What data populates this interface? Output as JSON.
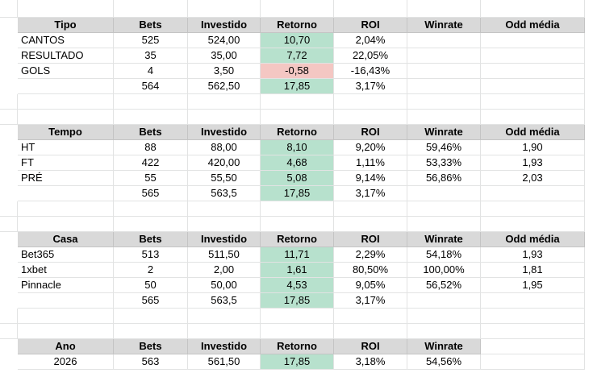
{
  "columns": [
    "",
    "",
    "",
    "",
    "",
    "",
    ""
  ],
  "tables": [
    {
      "name": "tipo",
      "headers": [
        "Tipo",
        "Bets",
        "Investido",
        "Retorno",
        "ROI",
        "Winrate",
        "Odd média"
      ],
      "rows": [
        [
          "CANTOS",
          "525",
          "524,00",
          "10,70",
          "2,04%",
          "",
          ""
        ],
        [
          "RESULTADO",
          "35",
          "35,00",
          "7,72",
          "22,05%",
          "",
          ""
        ],
        [
          "GOLS",
          "4",
          "3,50",
          "-0,58",
          "-16,43%",
          "",
          ""
        ],
        [
          "",
          "564",
          "562,50",
          "17,85",
          "3,17%",
          "",
          ""
        ]
      ]
    },
    {
      "name": "tempo",
      "headers": [
        "Tempo",
        "Bets",
        "Investido",
        "Retorno",
        "ROI",
        "Winrate",
        "Odd média"
      ],
      "rows": [
        [
          "HT",
          "88",
          "88,00",
          "8,10",
          "9,20%",
          "59,46%",
          "1,90"
        ],
        [
          "FT",
          "422",
          "420,00",
          "4,68",
          "1,11%",
          "53,33%",
          "1,93"
        ],
        [
          "PRÉ",
          "55",
          "55,50",
          "5,08",
          "9,14%",
          "56,86%",
          "2,03"
        ],
        [
          "",
          "565",
          "563,5",
          "17,85",
          "3,17%",
          "",
          ""
        ]
      ]
    },
    {
      "name": "casa",
      "headers": [
        "Casa",
        "Bets",
        "Investido",
        "Retorno",
        "ROI",
        "Winrate",
        "Odd média"
      ],
      "rows": [
        [
          "Bet365",
          "513",
          "511,50",
          "11,71",
          "2,29%",
          "54,18%",
          "1,93"
        ],
        [
          "1xbet",
          "2",
          "2,00",
          "1,61",
          "80,50%",
          "100,00%",
          "1,81"
        ],
        [
          "Pinnacle",
          "50",
          "50,00",
          "4,53",
          "9,05%",
          "56,52%",
          "1,95"
        ],
        [
          "",
          "565",
          "563,5",
          "17,85",
          "3,17%",
          "",
          ""
        ]
      ]
    },
    {
      "name": "ano",
      "headers": [
        "Ano",
        "Bets",
        "Investido",
        "Retorno",
        "ROI",
        "Winrate"
      ],
      "rows": [
        [
          "2026",
          "563",
          "561,50",
          "17,85",
          "3,18%",
          "54,56%"
        ]
      ]
    }
  ],
  "colors": {
    "header_bg": "#d9d9d9",
    "positive_return_bg": "#b7e1cd",
    "negative_return_bg": "#f4c7c3",
    "gridline": "#e2e3e3"
  }
}
